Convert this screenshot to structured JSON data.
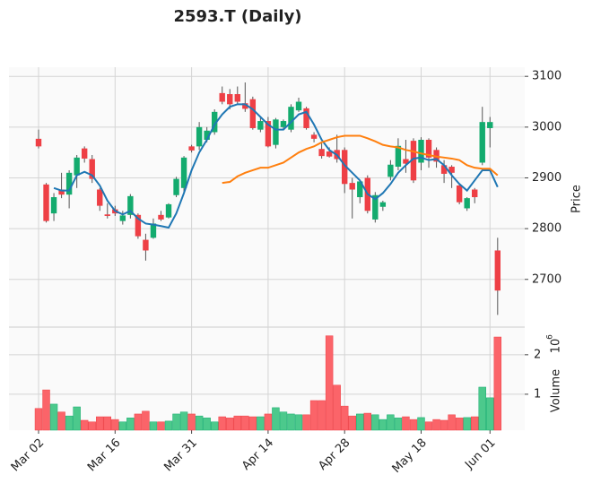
{
  "chart_data": {
    "type": "candlestick",
    "title": "2593.T (Daily)",
    "ylabel": "Price",
    "y2label": "Volume",
    "y2_offset": {
      "base": "10",
      "exponent": "6"
    },
    "categories": [
      "Mar 02",
      null,
      null,
      null,
      null,
      null,
      null,
      null,
      null,
      null,
      "Mar 16",
      null,
      null,
      null,
      null,
      null,
      null,
      null,
      null,
      null,
      "Mar 31",
      null,
      null,
      null,
      null,
      null,
      null,
      null,
      null,
      null,
      "Apr 14",
      null,
      null,
      null,
      null,
      null,
      null,
      null,
      null,
      null,
      "Apr 28",
      null,
      null,
      null,
      null,
      null,
      null,
      null,
      null,
      null,
      "May 18",
      null,
      null,
      null,
      null,
      null,
      null,
      null,
      null,
      "Jun 01",
      null
    ],
    "open": [
      2977,
      2887,
      2830,
      2877,
      2867,
      2905,
      2958,
      2937,
      2877,
      2828,
      2838,
      2815,
      2827,
      2827,
      2778,
      2782,
      2827,
      2822,
      2866,
      2880,
      2962,
      2962,
      2975,
      2990,
      3067,
      3065,
      3065,
      3047,
      3055,
      2995,
      3012,
      2965,
      3000,
      2995,
      3033,
      3037,
      2985,
      2957,
      2952,
      2955,
      2955,
      2890,
      2862,
      2900,
      2818,
      2843,
      2902,
      2922,
      2937,
      2973,
      2930,
      2975,
      2955,
      2925,
      2922,
      2885,
      2840,
      2877,
      2930,
      2998,
      2757
    ],
    "high": [
      2995,
      2890,
      2870,
      2910,
      2915,
      2945,
      2962,
      2945,
      2880,
      2850,
      2845,
      2835,
      2868,
      2830,
      2790,
      2820,
      2835,
      2850,
      2902,
      2943,
      2965,
      3010,
      3000,
      3035,
      3080,
      3075,
      3080,
      3088,
      3060,
      3020,
      3020,
      3018,
      3015,
      3045,
      3058,
      3040,
      2990,
      2968,
      2960,
      2985,
      2960,
      2900,
      2895,
      2905,
      2872,
      2855,
      2935,
      2978,
      2975,
      2978,
      2980,
      2978,
      2960,
      2935,
      2925,
      2888,
      2862,
      2880,
      3040,
      3020,
      2782
    ],
    "low": [
      2958,
      2812,
      2815,
      2860,
      2840,
      2880,
      2930,
      2890,
      2835,
      2820,
      2825,
      2808,
      2820,
      2780,
      2737,
      2780,
      2815,
      2820,
      2862,
      2872,
      2950,
      2955,
      2970,
      2985,
      3045,
      3035,
      3045,
      3030,
      2995,
      2990,
      2960,
      2958,
      2995,
      2990,
      3030,
      2995,
      2970,
      2938,
      2940,
      2930,
      2870,
      2820,
      2850,
      2830,
      2812,
      2835,
      2895,
      2915,
      2910,
      2890,
      2915,
      2920,
      2920,
      2890,
      2880,
      2848,
      2835,
      2850,
      2925,
      2960,
      2630
    ],
    "close": [
      2962,
      2815,
      2862,
      2867,
      2910,
      2940,
      2938,
      2898,
      2845,
      2825,
      2830,
      2826,
      2864,
      2785,
      2757,
      2810,
      2818,
      2848,
      2898,
      2940,
      2954,
      3000,
      2993,
      3030,
      3050,
      3045,
      3050,
      3036,
      2998,
      3012,
      2962,
      3015,
      3012,
      3040,
      3050,
      2998,
      2977,
      2943,
      2942,
      2937,
      2888,
      2877,
      2893,
      2835,
      2866,
      2852,
      2926,
      2963,
      2928,
      2895,
      2975,
      2940,
      2932,
      2908,
      2910,
      2852,
      2860,
      2862,
      3010,
      3010,
      2678
    ],
    "volume": [
      0.64,
      1.11,
      0.75,
      0.55,
      0.45,
      0.68,
      0.34,
      0.3,
      0.43,
      0.43,
      0.36,
      0.3,
      0.4,
      0.5,
      0.57,
      0.3,
      0.3,
      0.32,
      0.5,
      0.55,
      0.5,
      0.45,
      0.4,
      0.3,
      0.43,
      0.4,
      0.45,
      0.45,
      0.43,
      0.43,
      0.5,
      0.66,
      0.55,
      0.5,
      0.48,
      0.48,
      0.84,
      0.84,
      2.48,
      1.23,
      0.7,
      0.45,
      0.5,
      0.52,
      0.48,
      0.36,
      0.48,
      0.4,
      0.43,
      0.36,
      0.41,
      0.3,
      0.36,
      0.34,
      0.48,
      0.4,
      0.41,
      0.43,
      1.18,
      0.91,
      2.45
    ],
    "up_color": "#13ab6e",
    "down_color": "#ee3f45",
    "volume_up_color": "#4cc98c",
    "volume_down_color": "#fb6469",
    "moving_averages": [
      {
        "color": "#1f77b4",
        "values": [
          null,
          null,
          2880,
          2875,
          2875,
          2905,
          2912,
          2905,
          2885,
          2855,
          2835,
          2828,
          2835,
          2820,
          2810,
          2808,
          2805,
          2802,
          2830,
          2870,
          2915,
          2950,
          2975,
          3005,
          3025,
          3040,
          3045,
          3045,
          3035,
          3020,
          3005,
          2995,
          2995,
          3010,
          3025,
          3030,
          3005,
          2975,
          2955,
          2945,
          2925,
          2910,
          2895,
          2868,
          2858,
          2870,
          2888,
          2910,
          2925,
          2938,
          2940,
          2935,
          2937,
          2925,
          2905,
          2888,
          2875,
          2895,
          2915,
          2915,
          2882
        ]
      },
      {
        "color": "#ff7f0e",
        "values": [
          null,
          null,
          null,
          null,
          null,
          null,
          null,
          null,
          null,
          null,
          null,
          null,
          null,
          null,
          null,
          null,
          null,
          null,
          null,
          null,
          null,
          null,
          null,
          null,
          2890,
          2892,
          2903,
          2910,
          2915,
          2920,
          2920,
          2925,
          2930,
          2940,
          2950,
          2957,
          2962,
          2970,
          2975,
          2980,
          2983,
          2983,
          2983,
          2978,
          2972,
          2965,
          2962,
          2960,
          2955,
          2952,
          2948,
          2945,
          2942,
          2940,
          2938,
          2935,
          2925,
          2920,
          2918,
          2918,
          2905
        ]
      }
    ],
    "ylim": [
      2606,
      3118
    ],
    "yticks": [
      2700,
      2800,
      2900,
      3000,
      3100
    ],
    "y2lim": [
      0.09,
      2.7
    ],
    "y2ticks": [
      1,
      2
    ],
    "grid": true
  }
}
